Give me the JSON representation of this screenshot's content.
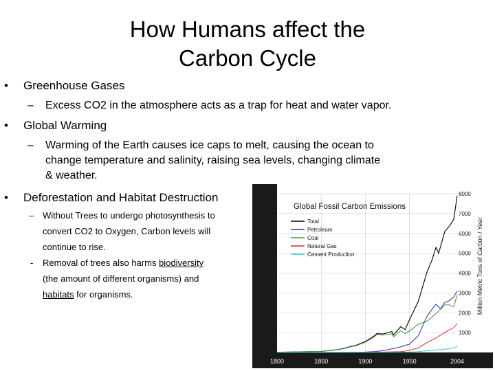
{
  "slide": {
    "title_line1": "How Humans affect the",
    "title_line2": "Carbon Cycle"
  },
  "bullets": {
    "greenhouse": {
      "heading": "Greenhouse Gases",
      "sub": "Excess CO2 in the atmosphere acts as a trap for heat and water vapor."
    },
    "warming": {
      "heading": "Global Warming",
      "sub_line1": "Warming of the Earth causes ice caps to melt, causing the ocean to",
      "sub_line2": "change temperature and salinity, raising sea levels, changing climate",
      "sub_line3": "& weather."
    },
    "deforestation": {
      "heading": "Deforestation and Habitat Destruction",
      "sub1_line1": "Without Trees to undergo photosynthesis to",
      "sub1_line2": "convert CO2 to Oxygen, Carbon levels will",
      "sub1_line3": "continue to rise.",
      "sub2_pre": "Removal of trees also harms ",
      "sub2_link1": "biodiversity",
      "sub2_line2": "(the amount of different organisms) and",
      "sub2_link2": "habitats",
      "sub2_post": " for organisms."
    }
  },
  "chart_data": {
    "type": "line",
    "title": "Global Fossil Carbon Emissions",
    "ylabel": "Million Metric Tons of Carbon / Year",
    "xlabel": "",
    "xlim": [
      1800,
      2004
    ],
    "ylim": [
      0,
      8000
    ],
    "x_ticks": [
      "1800",
      "1850",
      "1900",
      "1950",
      "2004"
    ],
    "y_ticks": [
      "1000",
      "2000",
      "3000",
      "4000",
      "5000",
      "6000",
      "7000",
      "8000"
    ],
    "legend_position": "top-left",
    "grid": true,
    "series": [
      {
        "name": "Total",
        "color": "#000000",
        "x": [
          1800,
          1850,
          1870,
          1890,
          1900,
          1910,
          1913,
          1920,
          1930,
          1932,
          1940,
          1945,
          1950,
          1960,
          1970,
          1975,
          1980,
          1983,
          1990,
          1995,
          2000,
          2004
        ],
        "y": [
          10,
          55,
          150,
          370,
          550,
          830,
          950,
          930,
          1050,
          880,
          1300,
          1150,
          1650,
          2580,
          4080,
          4600,
          5300,
          5000,
          6100,
          6350,
          6700,
          7900
        ]
      },
      {
        "name": "Petroleum",
        "color": "#2b2bb0",
        "x": [
          1800,
          1880,
          1900,
          1910,
          1920,
          1930,
          1940,
          1950,
          1960,
          1970,
          1975,
          1980,
          1985,
          1990,
          1995,
          2000,
          2004
        ],
        "y": [
          0,
          5,
          20,
          40,
          90,
          180,
          280,
          420,
          850,
          1840,
          2150,
          2430,
          2200,
          2520,
          2600,
          2800,
          3100
        ]
      },
      {
        "name": "Coal",
        "color": "#3f8f3f",
        "x": [
          1800,
          1850,
          1870,
          1890,
          1900,
          1910,
          1913,
          1920,
          1930,
          1932,
          1940,
          1945,
          1950,
          1960,
          1970,
          1980,
          1985,
          1990,
          1995,
          2000,
          2004
        ],
        "y": [
          10,
          55,
          140,
          350,
          520,
          790,
          900,
          880,
          940,
          780,
          1100,
          950,
          1080,
          1420,
          1580,
          1960,
          2170,
          2400,
          2400,
          2300,
          2900
        ]
      },
      {
        "name": "Natural Gas",
        "color": "#d62d20",
        "x": [
          1800,
          1890,
          1920,
          1940,
          1950,
          1960,
          1970,
          1980,
          1990,
          2000,
          2004
        ],
        "y": [
          0,
          5,
          20,
          40,
          100,
          230,
          500,
          730,
          1000,
          1250,
          1450
        ]
      },
      {
        "name": "Cement Production",
        "color": "#30c7c7",
        "x": [
          1800,
          1920,
          1950,
          1960,
          1970,
          1980,
          1990,
          2000,
          2004
        ],
        "y": [
          0,
          5,
          20,
          45,
          85,
          120,
          160,
          230,
          300
        ]
      }
    ]
  }
}
